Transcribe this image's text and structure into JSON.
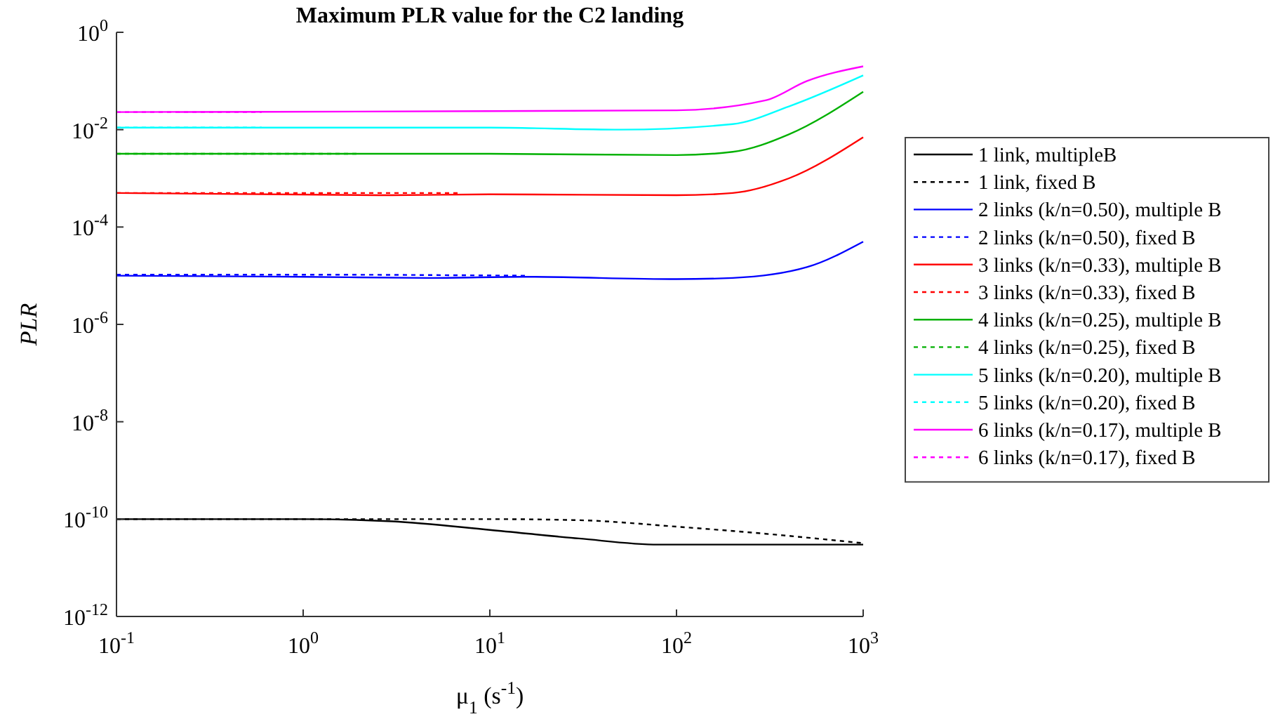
{
  "chart_data": {
    "type": "line",
    "title": "Maximum PLR value for the C2 landing",
    "xlabel": "μ$_{1}$ (s$^{-1}$)",
    "ylabel": "PLR",
    "log": "xy",
    "legend": "right",
    "grid": false,
    "xlim": [
      0.1,
      1000
    ],
    "xticks": [
      {
        "value": 0.1,
        "label": "10$^{-1}$"
      },
      {
        "value": 1,
        "label": "10$^{0}$"
      },
      {
        "value": 10,
        "label": "10$^{1}$"
      },
      {
        "value": 100,
        "label": "10$^{2}$"
      },
      {
        "value": 1000,
        "label": "10$^{3}$"
      }
    ],
    "ylim": [
      1e-12,
      1
    ],
    "yticks": [
      {
        "value": 1e-12,
        "label": "10$^{-12}$"
      },
      {
        "value": 1e-10,
        "label": "10$^{-10}$"
      },
      {
        "value": 1e-08,
        "label": "10$^{-8}$"
      },
      {
        "value": 1e-06,
        "label": "10$^{-6}$"
      },
      {
        "value": 0.0001,
        "label": "10$^{-4}$"
      },
      {
        "value": 0.01,
        "label": "10$^{-2}$"
      },
      {
        "value": 1,
        "label": "10$^{0}$"
      }
    ],
    "series": [
      {
        "name": "1 link, multipleB",
        "color": "#000000",
        "line_style": "solid",
        "x": [
          0.1,
          1,
          3,
          10,
          30,
          80,
          200,
          1000
        ],
        "values": [
          1e-10,
          1e-10,
          9e-11,
          6e-11,
          4e-11,
          3e-11,
          3e-11,
          3e-11
        ]
      },
      {
        "name": "1 link, fixed B",
        "color": "#000000",
        "line_style": "dashed",
        "x": [
          0.1,
          1,
          10,
          30,
          100,
          300,
          1000
        ],
        "values": [
          1e-10,
          1e-10,
          1e-10,
          9.5e-11,
          7e-11,
          5e-11,
          3.2e-11
        ]
      },
      {
        "name": "2 links (k/n=0.50), multiple B",
        "color": "#0000ff",
        "line_style": "solid",
        "x": [
          0.1,
          1,
          5,
          15,
          100,
          200,
          500,
          1000
        ],
        "values": [
          1e-05,
          9.5e-06,
          9e-06,
          9.5e-06,
          8.5e-06,
          9e-06,
          1.5e-05,
          5e-05
        ]
      },
      {
        "name": "2 links (k/n=0.50), fixed B",
        "color": "#0000ff",
        "line_style": "dashed",
        "x": [
          0.1,
          1,
          16
        ],
        "values": [
          1.05e-05,
          1.05e-05,
          1e-05
        ]
      },
      {
        "name": "3 links (k/n=0.33), multiple B",
        "color": "#ff0000",
        "line_style": "solid",
        "x": [
          0.1,
          3,
          10,
          100,
          200,
          400,
          1000
        ],
        "values": [
          0.0005,
          0.00045,
          0.00047,
          0.00045,
          0.0005,
          0.001,
          0.007
        ]
      },
      {
        "name": "3 links (k/n=0.33), fixed B",
        "color": "#ff0000",
        "line_style": "dashed",
        "x": [
          0.1,
          7
        ],
        "values": [
          0.0005,
          0.0005
        ]
      },
      {
        "name": "4 links (k/n=0.25), multiple B",
        "color": "#00b000",
        "line_style": "solid",
        "x": [
          0.1,
          10,
          100,
          200,
          400,
          1000
        ],
        "values": [
          0.0032,
          0.0032,
          0.003,
          0.0035,
          0.008,
          0.06
        ]
      },
      {
        "name": "4 links (k/n=0.25), fixed B",
        "color": "#00b000",
        "line_style": "dashed",
        "x": [
          0.1,
          2
        ],
        "values": [
          0.0032,
          0.0032
        ]
      },
      {
        "name": "5 links (k/n=0.20), multiple B",
        "color": "#00ffff",
        "line_style": "solid",
        "x": [
          0.1,
          10,
          50,
          200,
          400,
          1000
        ],
        "values": [
          0.011,
          0.011,
          0.01,
          0.013,
          0.03,
          0.13
        ]
      },
      {
        "name": "5 links (k/n=0.20), fixed B",
        "color": "#00ffff",
        "line_style": "dashed",
        "x": [
          0.1,
          0.6
        ],
        "values": [
          0.011,
          0.011
        ]
      },
      {
        "name": "6 links (k/n=0.17), multiple B",
        "color": "#ff00ff",
        "line_style": "solid",
        "x": [
          0.1,
          10,
          100,
          300,
          500,
          1000
        ],
        "values": [
          0.023,
          0.024,
          0.025,
          0.04,
          0.1,
          0.2
        ]
      },
      {
        "name": "6 links (k/n=0.17), fixed B",
        "color": "#ff00ff",
        "line_style": "dashed",
        "x": [
          0.1,
          0.6
        ],
        "values": [
          0.023,
          0.023
        ]
      }
    ]
  }
}
